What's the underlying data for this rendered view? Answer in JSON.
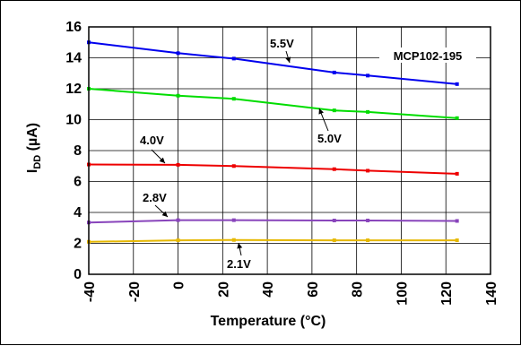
{
  "chart_data": {
    "type": "line",
    "xlabel": "Temperature (°C)",
    "ylabel_main": "I",
    "ylabel_sub": "DD",
    "ylabel_unit": " (µA)",
    "xlim": [
      -40,
      140
    ],
    "ylim": [
      0,
      16
    ],
    "x_ticks": [
      -40,
      -20,
      0,
      20,
      40,
      60,
      80,
      100,
      120,
      140
    ],
    "y_ticks": [
      0,
      2,
      4,
      6,
      8,
      10,
      12,
      14,
      16
    ],
    "grid": true,
    "annotation": "MCP102-195",
    "x": [
      -40,
      0,
      25,
      70,
      85,
      125
    ],
    "series": [
      {
        "name": "5.5V",
        "color": "#0000ee",
        "values": [
          15.0,
          14.3,
          13.95,
          13.05,
          12.85,
          12.3
        ]
      },
      {
        "name": "5.0V",
        "color": "#00dd00",
        "values": [
          12.0,
          11.55,
          11.35,
          10.6,
          10.5,
          10.1
        ]
      },
      {
        "name": "4.0V",
        "color": "#ee0000",
        "values": [
          7.1,
          7.08,
          7.0,
          6.8,
          6.7,
          6.5
        ]
      },
      {
        "name": "2.8V",
        "color": "#8844bb",
        "values": [
          3.35,
          3.5,
          3.5,
          3.48,
          3.48,
          3.45
        ]
      },
      {
        "name": "2.1V",
        "color": "#e6b800",
        "values": [
          2.1,
          2.2,
          2.22,
          2.2,
          2.2,
          2.2
        ]
      }
    ]
  }
}
